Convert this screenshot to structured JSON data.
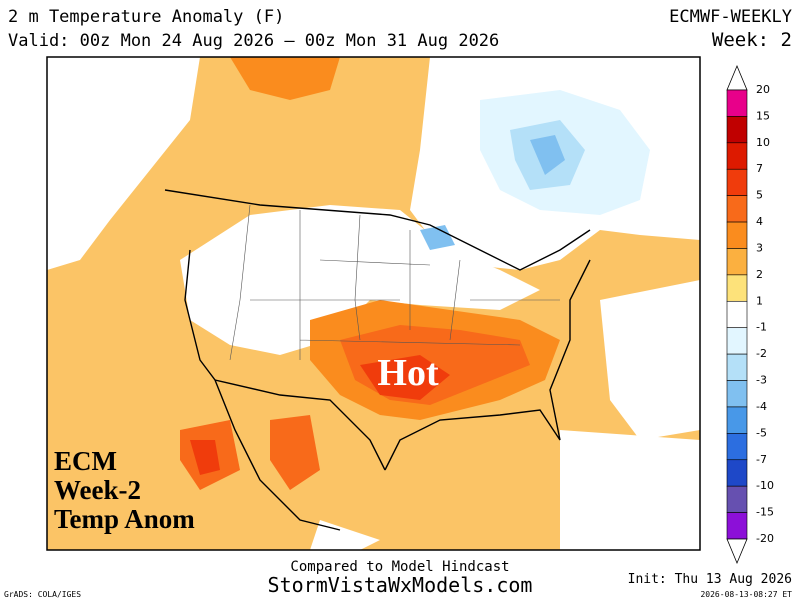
{
  "header": {
    "title": "2 m Temperature Anomaly (F)",
    "model": "ECMWF-WEEKLY",
    "valid": "Valid: 00z Mon 24 Aug 2026 — 00z Mon 31 Aug 2026",
    "week": "Week: 2"
  },
  "map": {
    "annotation": "Hot",
    "overlay_lines": [
      "ECM",
      "Week-2",
      "Temp Anom"
    ]
  },
  "colorbar": {
    "labels": [
      20,
      15,
      10,
      7,
      5,
      4,
      3,
      2,
      1,
      -1,
      -2,
      -3,
      -4,
      -5,
      -7,
      -10,
      -15,
      -20
    ],
    "colors": [
      "#e8008a",
      "#c00000",
      "#dd1a00",
      "#f03c0c",
      "#f86a1a",
      "#fa8c1e",
      "#fbb040",
      "#fde27a",
      "#ffffff",
      "#e2f6ff",
      "#b4e0f8",
      "#80c0f0",
      "#4898e8",
      "#2c6ee0",
      "#1e48c8",
      "#6650b0",
      "#8c10d8"
    ]
  },
  "footer": {
    "subtitle": "Compared to Model Hindcast",
    "site": "StormVistaWxModels.com",
    "init": "Init: Thu 13 Aug 2026",
    "credit": "GrADS: COLA/IGES",
    "timestamp": "2026-08-13-08:27 ET"
  }
}
